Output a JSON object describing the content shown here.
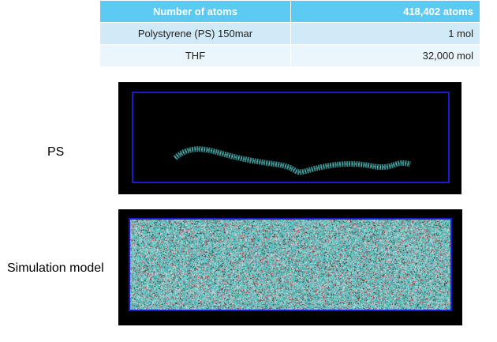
{
  "table": {
    "header": [
      "Number of atoms",
      "418,402 atoms"
    ],
    "rows": [
      [
        "Polystyrene (PS) 150mar",
        "1 mol"
      ],
      [
        "THF",
        "32,000 mol"
      ]
    ]
  },
  "figures": [
    {
      "label": "PS"
    },
    {
      "label": "Simulation model"
    }
  ],
  "colors": {
    "header": "#5ccaf2",
    "row1": "#d0eaf8",
    "row2": "#eaf5fc",
    "box": "#1a1ad0",
    "molecule": "#3fb8b8"
  }
}
